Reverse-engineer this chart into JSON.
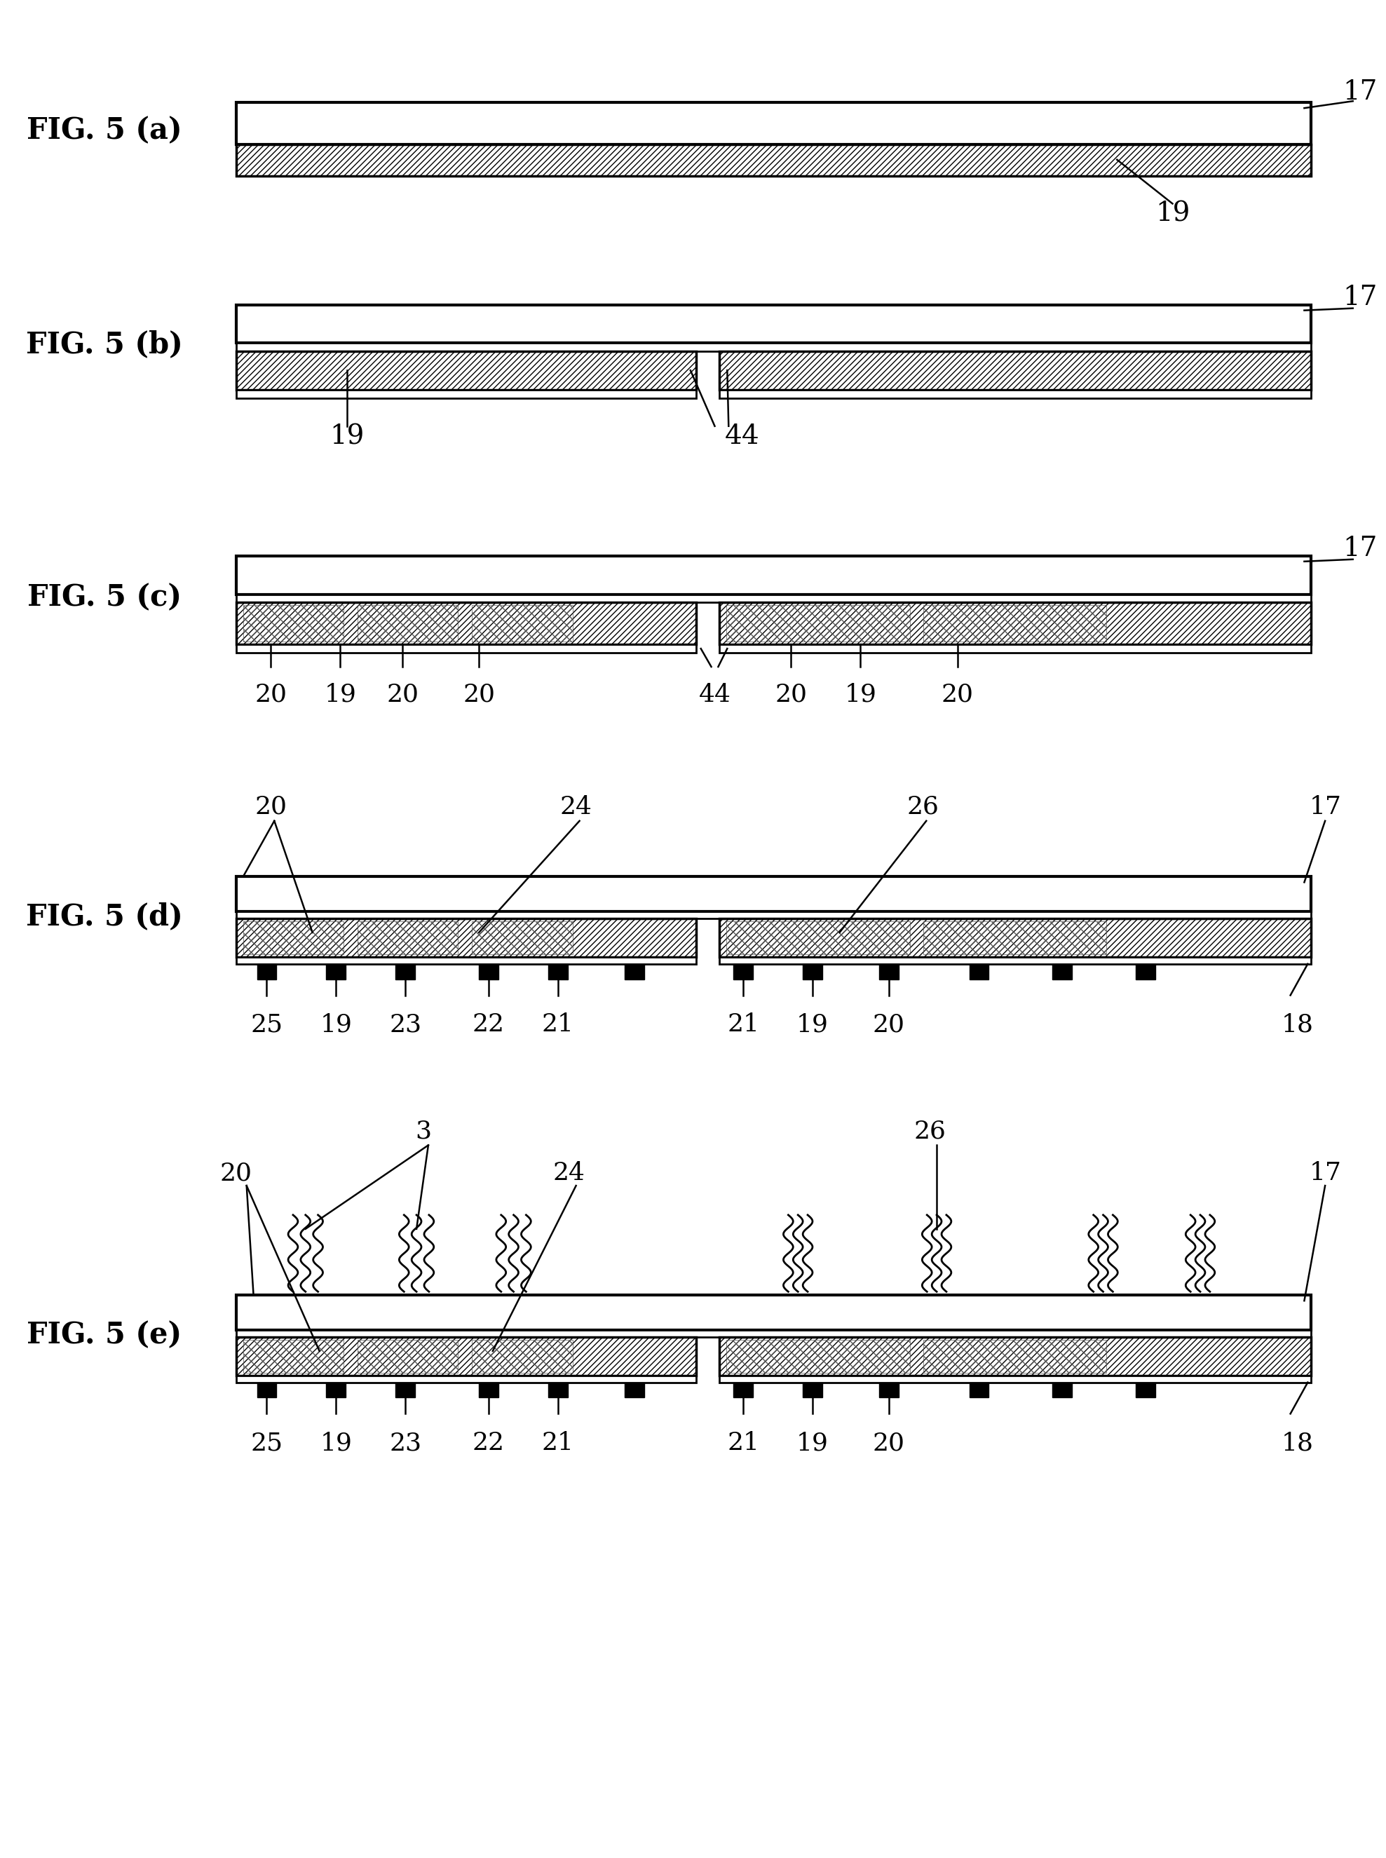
{
  "fig_width": 19.77,
  "fig_height": 26.5,
  "bg_color": "#ffffff",
  "labels": {
    "fig_a": "FIG. 5 (a)",
    "fig_b": "FIG. 5 (b)",
    "fig_c": "FIG. 5 (c)",
    "fig_d": "FIG. 5 (d)",
    "fig_e": "FIG. 5 (e)"
  }
}
